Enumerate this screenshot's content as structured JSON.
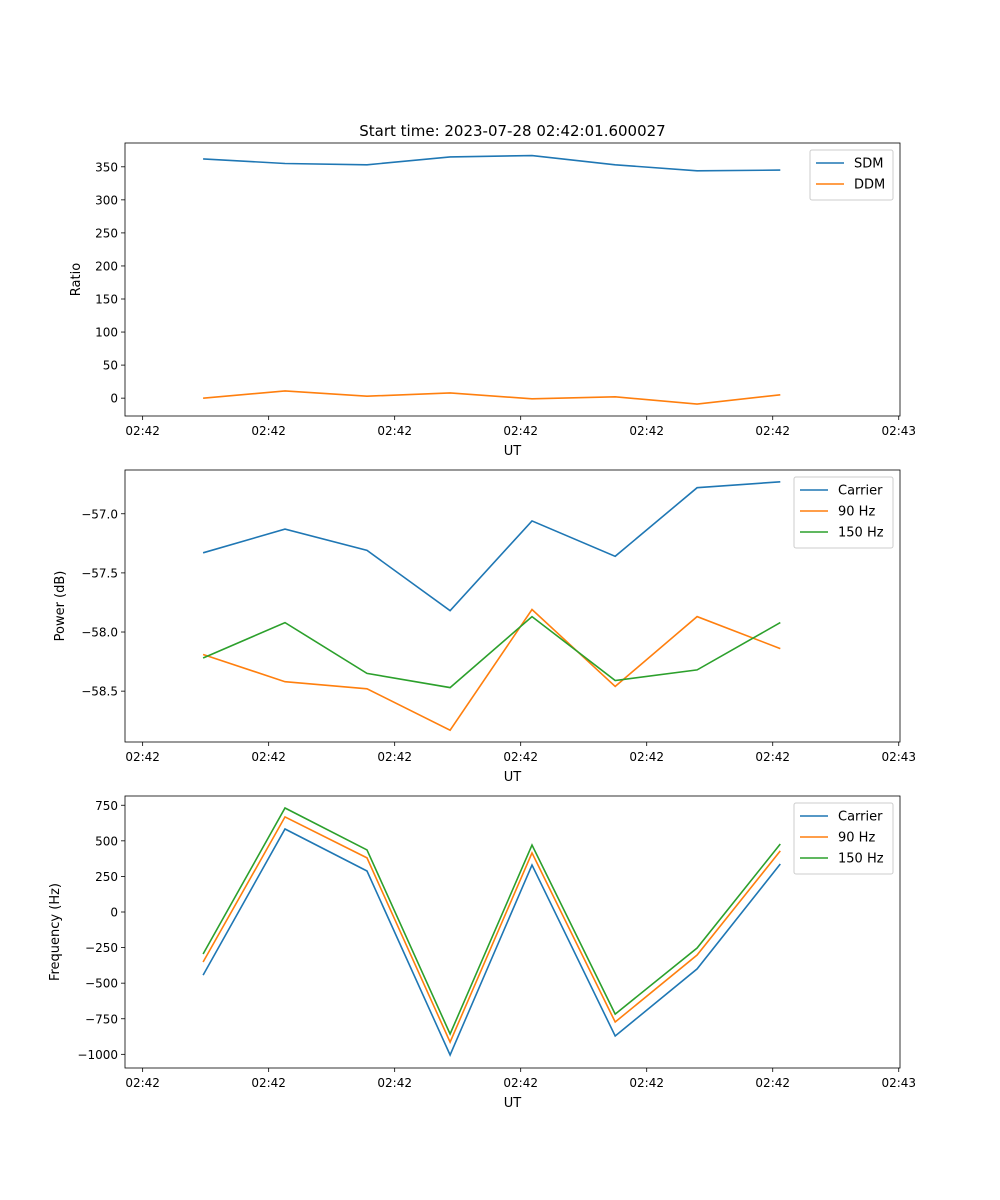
{
  "chart_data": [
    {
      "type": "line",
      "title": "Start time: 2023-07-28 02:42:01.600027",
      "xlabel": "UT",
      "ylabel": "Ratio",
      "x": [
        4.8,
        11.3,
        17.8,
        24.4,
        30.9,
        37.5,
        44.0,
        50.6
      ],
      "xlim": [
        -1.4,
        60.1
      ],
      "xticks": [
        0,
        10,
        20,
        30,
        40,
        50,
        60
      ],
      "xticklabels": [
        "02:42",
        "02:42",
        "02:42",
        "02:42",
        "02:42",
        "02:42",
        "02:43"
      ],
      "ylim": [
        -27,
        386
      ],
      "yticks": [
        0,
        50,
        100,
        150,
        200,
        250,
        300,
        350
      ],
      "yticklabels": [
        "0",
        "50",
        "100",
        "150",
        "200",
        "250",
        "300",
        "350"
      ],
      "legend": "top-right",
      "series": [
        {
          "name": "SDM",
          "color": "#1f77b4",
          "values": [
            362,
            355,
            353,
            365,
            367,
            353,
            344,
            345
          ]
        },
        {
          "name": "DDM",
          "color": "#ff7f0e",
          "values": [
            0,
            11,
            3,
            8,
            -1,
            2,
            -9,
            5
          ]
        }
      ]
    },
    {
      "type": "line",
      "xlabel": "UT",
      "ylabel": "Power (dB)",
      "x": [
        4.8,
        11.3,
        17.8,
        24.4,
        30.9,
        37.5,
        44.0,
        50.6
      ],
      "xlim": [
        -1.4,
        60.1
      ],
      "xticks": [
        0,
        10,
        20,
        30,
        40,
        50,
        60
      ],
      "xticklabels": [
        "02:42",
        "02:42",
        "02:42",
        "02:42",
        "02:42",
        "02:42",
        "02:43"
      ],
      "ylim": [
        -58.93,
        -56.63
      ],
      "yticks": [
        -57.0,
        -57.5,
        -58.0,
        -58.5
      ],
      "yticklabels": [
        "−57.0",
        "−57.5",
        "−58.0",
        "−58.5"
      ],
      "legend": "top-right",
      "series": [
        {
          "name": "Carrier",
          "color": "#1f77b4",
          "values": [
            -57.33,
            -57.13,
            -57.31,
            -57.82,
            -57.06,
            -57.36,
            -56.78,
            -56.73
          ]
        },
        {
          "name": "90 Hz",
          "color": "#ff7f0e",
          "values": [
            -58.19,
            -58.42,
            -58.48,
            -58.83,
            -57.81,
            -58.46,
            -57.87,
            -58.14
          ]
        },
        {
          "name": "150 Hz",
          "color": "#2ca02c",
          "values": [
            -58.22,
            -57.92,
            -58.35,
            -58.47,
            -57.87,
            -58.41,
            -58.32,
            -57.92
          ]
        }
      ]
    },
    {
      "type": "line",
      "xlabel": "UT",
      "ylabel": "Frequency (Hz)",
      "x": [
        4.8,
        11.3,
        17.8,
        24.4,
        30.9,
        37.5,
        44.0,
        50.6
      ],
      "xlim": [
        -1.4,
        60.1
      ],
      "xticks": [
        0,
        10,
        20,
        30,
        40,
        50,
        60
      ],
      "xticklabels": [
        "02:42",
        "02:42",
        "02:42",
        "02:42",
        "02:42",
        "02:42",
        "02:43"
      ],
      "ylim": [
        -1096,
        815
      ],
      "yticks": [
        -1000,
        -750,
        -500,
        -250,
        0,
        250,
        500,
        750
      ],
      "yticklabels": [
        "−1000",
        "−750",
        "−500",
        "−250",
        "0",
        "250",
        "500",
        "750"
      ],
      "legend": "top-right",
      "series": [
        {
          "name": "Carrier",
          "color": "#1f77b4",
          "values": [
            -443,
            583,
            288,
            -1005,
            330,
            -871,
            -400,
            337
          ]
        },
        {
          "name": "90 Hz",
          "color": "#ff7f0e",
          "values": [
            -351,
            668,
            380,
            -914,
            415,
            -773,
            -302,
            429
          ]
        },
        {
          "name": "150 Hz",
          "color": "#2ca02c",
          "values": [
            -295,
            731,
            436,
            -857,
            471,
            -717,
            -253,
            478
          ]
        }
      ]
    }
  ]
}
